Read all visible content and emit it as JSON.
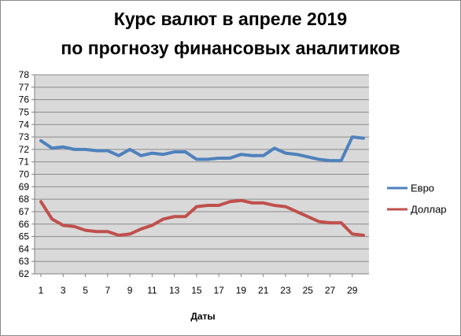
{
  "chart_data": {
    "type": "line",
    "title_line1": "Курс валют в апреле 2019",
    "title_line2": "по прогнозу финансовых аналитиков",
    "xlabel": "Даты",
    "ylabel": "",
    "ylim": [
      62,
      78
    ],
    "y_ticks": [
      "62",
      "63",
      "64",
      "65",
      "66",
      "67",
      "68",
      "69",
      "70",
      "71",
      "72",
      "73",
      "74",
      "75",
      "76",
      "77",
      "78"
    ],
    "x_ticks": [
      "1",
      "3",
      "5",
      "7",
      "9",
      "11",
      "13",
      "15",
      "17",
      "19",
      "21",
      "23",
      "25",
      "27",
      "29"
    ],
    "x": [
      1,
      2,
      3,
      4,
      5,
      6,
      7,
      8,
      9,
      10,
      11,
      12,
      13,
      14,
      15,
      16,
      17,
      18,
      19,
      20,
      21,
      22,
      23,
      24,
      25,
      26,
      27,
      28,
      29,
      30
    ],
    "grid": true,
    "legend_position": "right",
    "series": [
      {
        "name": "Евро",
        "color": "#4f81bd",
        "values": [
          72.7,
          72.1,
          72.2,
          72.0,
          72.0,
          71.9,
          71.9,
          71.5,
          72.0,
          71.5,
          71.7,
          71.6,
          71.8,
          71.8,
          71.2,
          71.2,
          71.3,
          71.3,
          71.6,
          71.5,
          71.5,
          72.1,
          71.7,
          71.6,
          71.4,
          71.2,
          71.1,
          71.1,
          73.0,
          72.9
        ]
      },
      {
        "name": "Доллар",
        "color": "#c0504d",
        "values": [
          67.8,
          66.4,
          65.9,
          65.8,
          65.5,
          65.4,
          65.4,
          65.1,
          65.2,
          65.6,
          65.9,
          66.4,
          66.6,
          66.6,
          67.4,
          67.5,
          67.5,
          67.8,
          67.9,
          67.7,
          67.7,
          67.5,
          67.4,
          67.0,
          66.6,
          66.2,
          66.1,
          66.1,
          65.2,
          65.1
        ]
      }
    ]
  }
}
